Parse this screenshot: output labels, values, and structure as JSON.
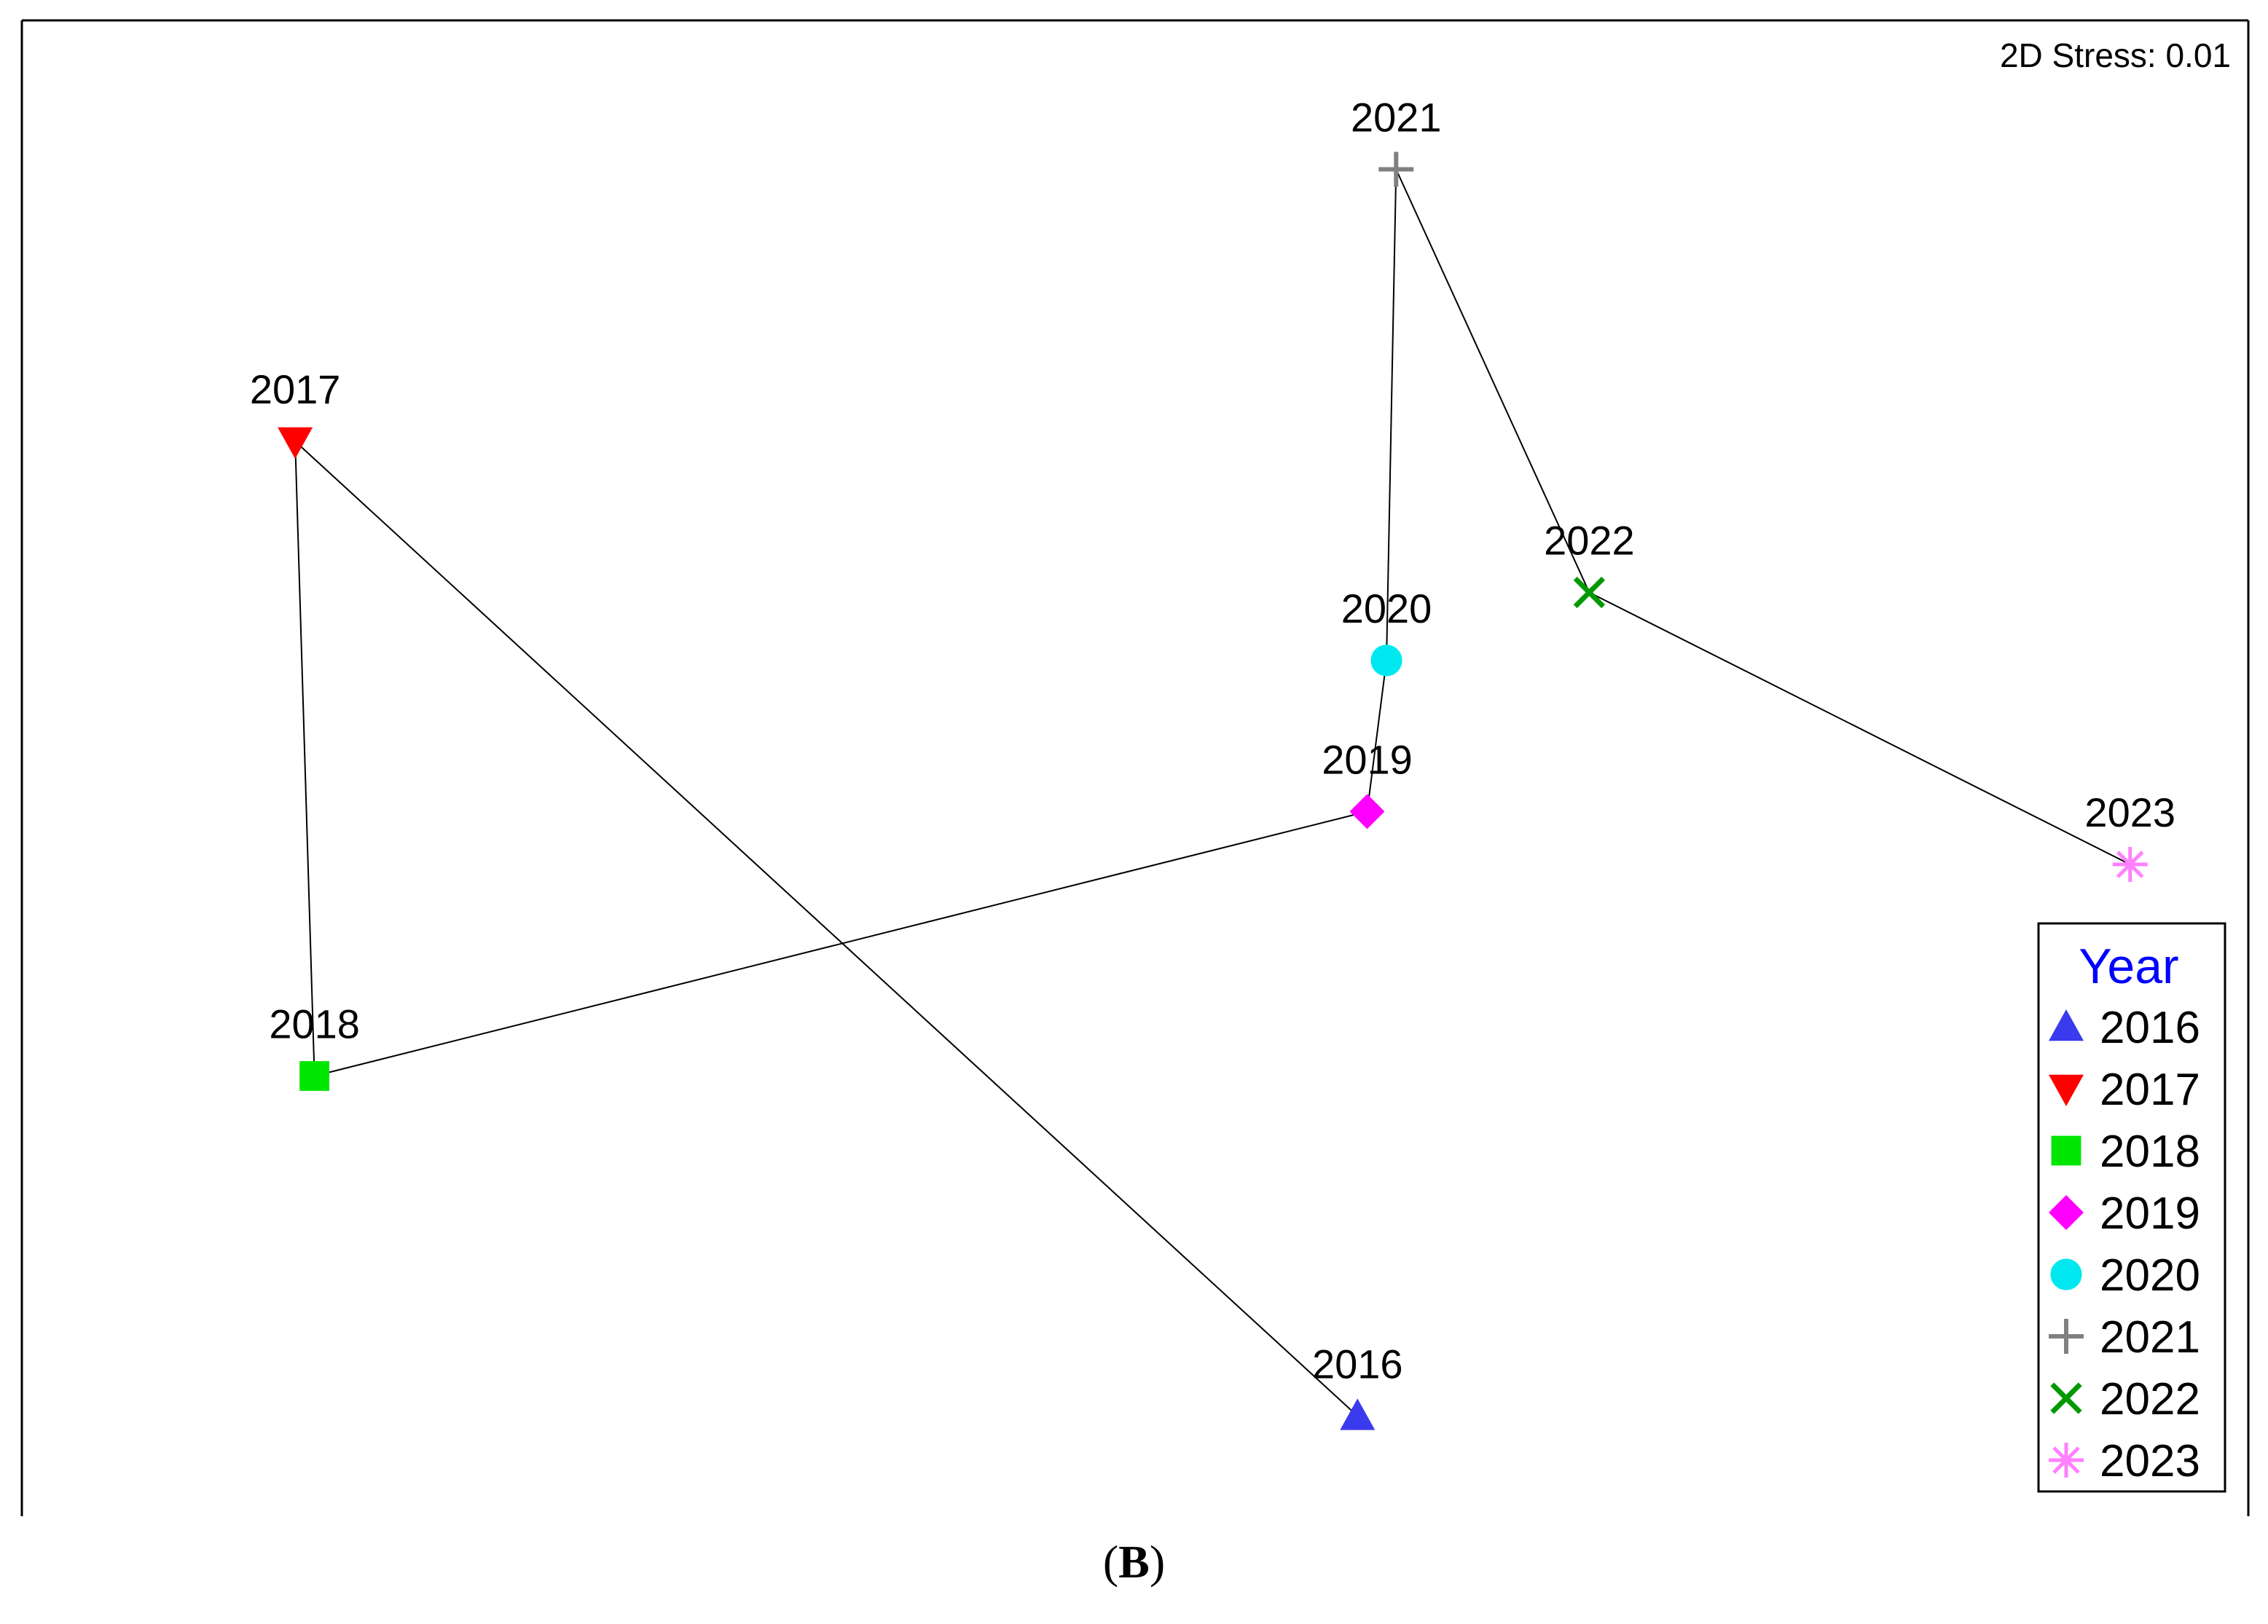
{
  "chart_data": {
    "type": "scatter",
    "title": "",
    "stress_label": "2D Stress: 0.01",
    "trajectory_order": [
      "2016",
      "2017",
      "2018",
      "2019",
      "2020",
      "2021",
      "2022",
      "2023"
    ],
    "points": [
      {
        "label": "2016",
        "x": 0.3,
        "y": -0.85,
        "marker": "triangle-up",
        "color": "#3a3aee"
      },
      {
        "label": "2017",
        "x": -0.8,
        "y": 0.44,
        "marker": "triangle-down",
        "color": "#ff0000"
      },
      {
        "label": "2018",
        "x": -0.78,
        "y": -0.4,
        "marker": "square",
        "color": "#00e600"
      },
      {
        "label": "2019",
        "x": 0.31,
        "y": -0.05,
        "marker": "diamond",
        "color": "#ff00ff"
      },
      {
        "label": "2020",
        "x": 0.33,
        "y": 0.15,
        "marker": "circle",
        "color": "#00e8ef"
      },
      {
        "label": "2021",
        "x": 0.34,
        "y": 0.8,
        "marker": "plus",
        "color": "#808080"
      },
      {
        "label": "2022",
        "x": 0.54,
        "y": 0.24,
        "marker": "cross",
        "color": "#009900"
      },
      {
        "label": "2023",
        "x": 1.1,
        "y": -0.12,
        "marker": "asterisk",
        "color": "#ff80ff"
      }
    ],
    "legend": {
      "title": "Year",
      "title_color": "#0000ff",
      "placement": "bottom-right",
      "entries": [
        "2016",
        "2017",
        "2018",
        "2019",
        "2020",
        "2021",
        "2022",
        "2023"
      ]
    },
    "axes": {
      "visible": false,
      "grid": false
    }
  },
  "panel_label": {
    "open": "(",
    "letter": "B",
    "close": ")"
  }
}
